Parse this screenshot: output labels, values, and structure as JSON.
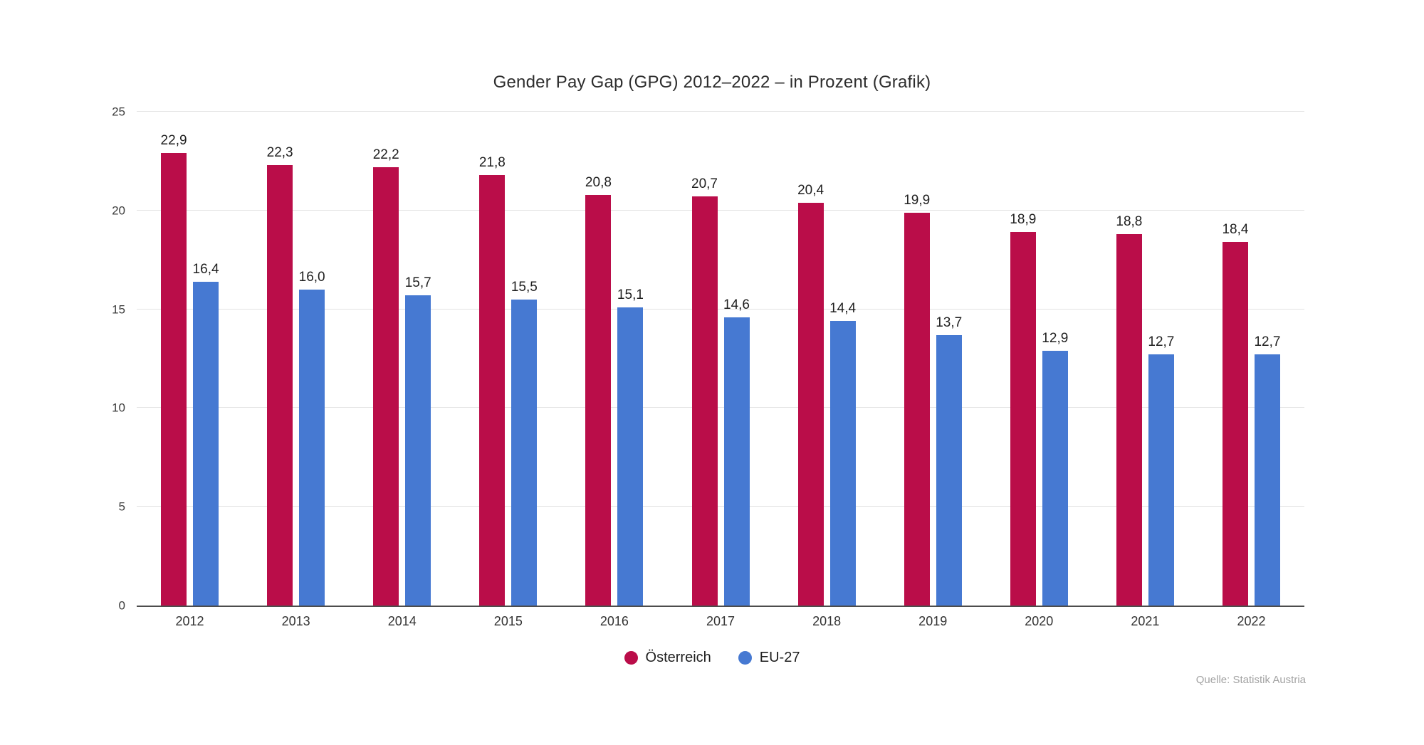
{
  "title": "Gender Pay Gap (GPG) 2012–2022 – in Prozent (Grafik)",
  "source": "Quelle: Statistik Austria",
  "chart_data": {
    "type": "bar",
    "title": "Gender Pay Gap (GPG) 2012–2022 – in Prozent (Grafik)",
    "categories": [
      "2012",
      "2013",
      "2014",
      "2015",
      "2016",
      "2017",
      "2018",
      "2019",
      "2020",
      "2021",
      "2022"
    ],
    "series": [
      {
        "name": "Österreich",
        "color": "#ba0d49",
        "values": [
          22.9,
          22.3,
          22.2,
          21.8,
          20.8,
          20.7,
          20.4,
          19.9,
          18.9,
          18.8,
          18.4
        ]
      },
      {
        "name": "EU-27",
        "color": "#4679d2",
        "values": [
          16.4,
          16.0,
          15.7,
          15.5,
          15.1,
          14.6,
          14.4,
          13.7,
          12.9,
          12.7,
          12.7
        ]
      }
    ],
    "xlabel": "",
    "ylabel": "",
    "ylim": [
      0,
      25
    ],
    "yticks": [
      0,
      5,
      10,
      15,
      20,
      25
    ],
    "grid": true,
    "legend_position": "bottom",
    "value_labels": true,
    "decimal_separator": ","
  }
}
